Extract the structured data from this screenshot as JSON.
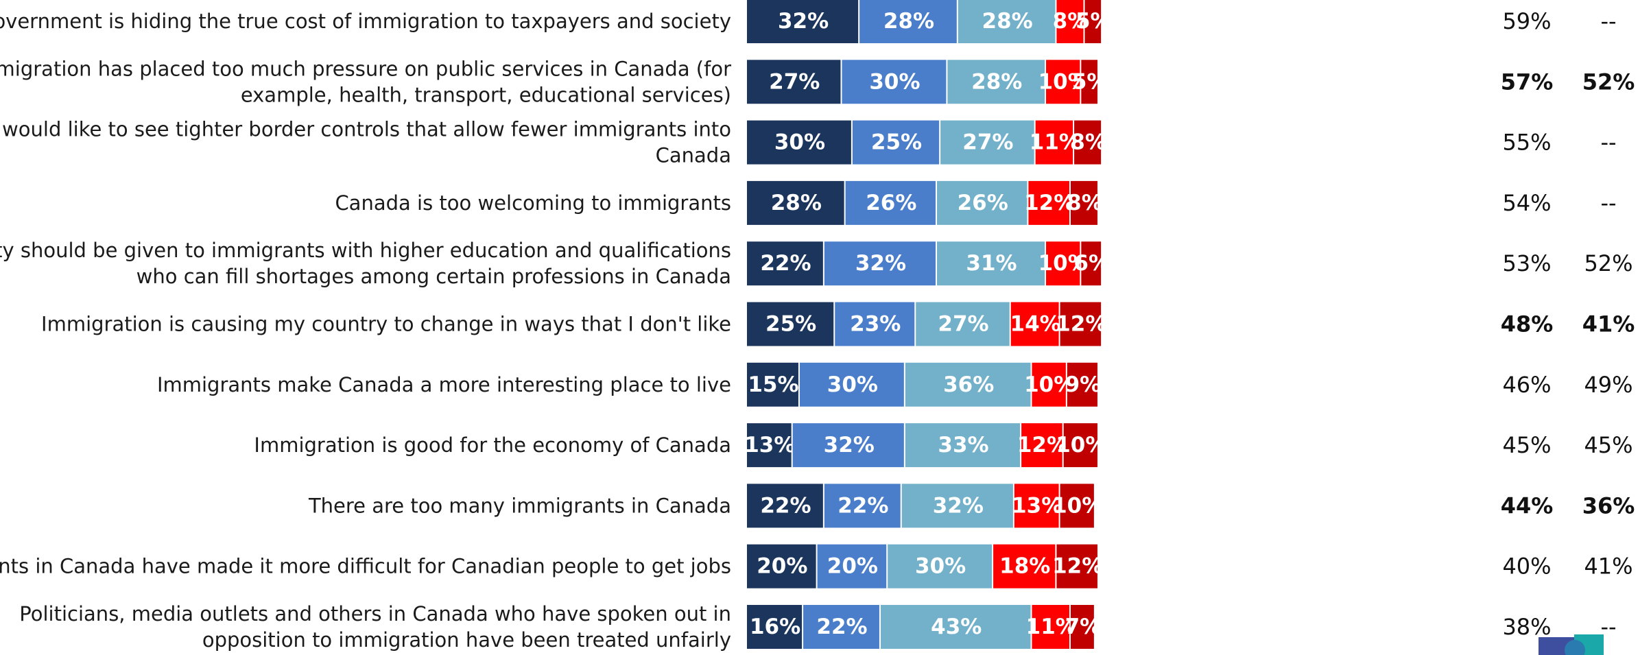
{
  "colors": [
    "#1b355c",
    "#4a7ecb",
    "#72b1c9",
    "#ff0000",
    "#c00000"
  ],
  "chart_data": {
    "type": "bar",
    "orientation": "horizontal",
    "stacked": true,
    "categories": [
      "The government is hiding the true cost of immigration to taxpayers and society",
      "Immigration has placed too much pressure on public services in Canada (for example, health, transport, educational services)",
      "I would like to see tighter border controls that allow fewer immigrants into Canada",
      "Canada is too welcoming to immigrants",
      "Priority should be given to immigrants with higher education and qualifications who can fill shortages among certain professions in Canada",
      "Immigration is causing my country to change in ways that I don't like",
      "Immigrants make Canada a more interesting place to live",
      "Immigration is good for the economy of Canada",
      "There are too many immigrants in Canada",
      "Immigrants in Canada have made it more difficult for Canadian people to get jobs",
      "Politicians, media outlets and others in Canada who have spoken out in opposition to immigration have been treated unfairly"
    ],
    "category_lines": [
      [
        "The government is hiding the true cost of immigration to taxpayers and society"
      ],
      [
        "Immigration has placed too much pressure on public services in Canada (for",
        "example, health, transport, educational services)"
      ],
      [
        "I would like to see tighter border controls that allow fewer immigrants into",
        "Canada"
      ],
      [
        "Canada is too welcoming to immigrants"
      ],
      [
        "Priority should be given to immigrants with higher education and qualifications",
        "who can fill shortages among certain professions in Canada"
      ],
      [
        "Immigration is causing my country to change in ways that I don't like"
      ],
      [
        "Immigrants make Canada a more interesting place to live"
      ],
      [
        "Immigration is good for the economy of Canada"
      ],
      [
        "There are too many immigrants in Canada"
      ],
      [
        "Immigrants in Canada have made it more difficult for Canadian people to get jobs"
      ],
      [
        "Politicians, media outlets and others in Canada who have spoken out in",
        "opposition to immigration have been treated unfairly"
      ]
    ],
    "series": [
      {
        "values": [
          32,
          27,
          30,
          28,
          22,
          25,
          15,
          13,
          22,
          20,
          16
        ]
      },
      {
        "values": [
          28,
          30,
          25,
          26,
          32,
          23,
          30,
          32,
          22,
          20,
          22
        ]
      },
      {
        "values": [
          28,
          28,
          27,
          26,
          31,
          27,
          36,
          33,
          32,
          30,
          43
        ]
      },
      {
        "values": [
          8,
          10,
          11,
          12,
          10,
          14,
          10,
          12,
          13,
          18,
          11
        ]
      },
      {
        "values": [
          5,
          5,
          8,
          8,
          6,
          12,
          9,
          10,
          10,
          12,
          7
        ]
      }
    ],
    "value_suffix": "%",
    "column_1": [
      "59%",
      "57%",
      "55%",
      "54%",
      "53%",
      "48%",
      "46%",
      "45%",
      "44%",
      "40%",
      "38%"
    ],
    "column_1_bold": [
      false,
      true,
      false,
      false,
      false,
      true,
      false,
      false,
      true,
      false,
      false
    ],
    "column_2": [
      "--",
      "52%",
      "--",
      "--",
      "52%",
      "41%",
      "49%",
      "45%",
      "36%",
      "41%",
      "--"
    ],
    "column_2_bold": [
      false,
      true,
      false,
      false,
      false,
      true,
      false,
      false,
      true,
      false,
      false
    ]
  }
}
